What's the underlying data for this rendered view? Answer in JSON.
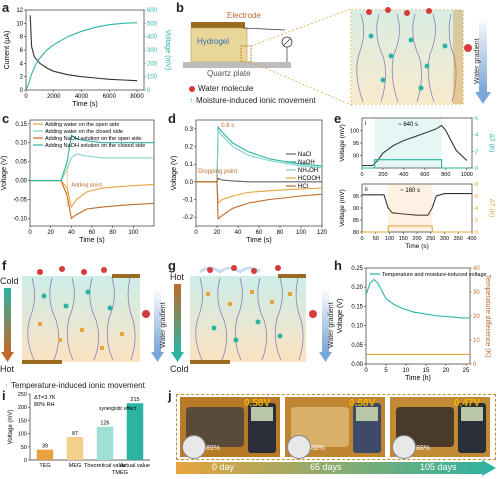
{
  "panels": {
    "a": {
      "label": "a"
    },
    "b": {
      "label": "b"
    },
    "c": {
      "label": "c"
    },
    "d": {
      "label": "d"
    },
    "e": {
      "label": "e"
    },
    "f": {
      "label": "f"
    },
    "g": {
      "label": "g"
    },
    "h": {
      "label": "h"
    },
    "i": {
      "label": "i"
    },
    "j": {
      "label": "j"
    }
  },
  "schematic_b": {
    "electrode": "Electrode",
    "hydrogel": "Hydrogel",
    "quartz": "Quartz plate",
    "legend_water": "Water molecule",
    "legend_ion": "Moisture-induced ionic movement",
    "water_gradient": "Water gradient"
  },
  "schematic_fg": {
    "cold": "Cold",
    "hot": "Hot",
    "water_gradient": "Water gradient",
    "legend_temp_ion": "Temperature-induced ionic movement"
  },
  "photos_j": {
    "voltages": [
      "0.58V",
      "0.58V",
      "0.47V"
    ],
    "temps": [
      "89%",
      "88%",
      "88%"
    ],
    "timeline": [
      "0 day",
      "65 days",
      "105 days"
    ],
    "colors": {
      "bg": "#c88a2e",
      "accent": "#2bb3a3",
      "label": "#f5b400"
    }
  },
  "chart_data": [
    {
      "id": "a",
      "type": "line",
      "xlabel": "Time (s)",
      "ylabel": "Current (μA)",
      "y2label": "Voltage (mV)",
      "xlim": [
        0,
        8500
      ],
      "ylim": [
        0,
        12
      ],
      "y2lim": [
        0,
        600
      ],
      "xticks": [
        0,
        2000,
        4000,
        6000,
        8000
      ],
      "yticks": [
        0,
        2,
        4,
        6,
        8,
        10,
        12
      ],
      "y2ticks": [
        0,
        100,
        200,
        300,
        400,
        500,
        600
      ],
      "series": [
        {
          "axis": "left",
          "color": "#333333",
          "x": [
            300,
            400,
            600,
            1000,
            1500,
            2000,
            3000,
            4000,
            5000,
            6000,
            7000,
            8000
          ],
          "y": [
            11.2,
            6.5,
            5.0,
            4.0,
            3.3,
            2.8,
            2.3,
            2.0,
            1.8,
            1.6,
            1.5,
            1.4
          ]
        },
        {
          "axis": "right",
          "color": "#2bb3a3",
          "x": [
            0,
            200,
            400,
            700,
            1000,
            1500,
            2000,
            3000,
            4000,
            5000,
            6000,
            7000,
            8000
          ],
          "y": [
            0,
            50,
            120,
            190,
            240,
            300,
            340,
            400,
            440,
            470,
            490,
            500,
            505
          ]
        }
      ]
    },
    {
      "id": "c",
      "type": "line",
      "xlabel": "Time (s)",
      "ylabel": "Voltage (V)",
      "xlim": [
        0,
        120
      ],
      "ylim": [
        -0.12,
        0.16
      ],
      "xticks": [
        0,
        20,
        40,
        60,
        80,
        100
      ],
      "yticks": [
        -0.1,
        -0.05,
        0.0,
        0.05,
        0.1,
        0.15
      ],
      "ytick_labels": [
        "-0.10",
        "-0.05",
        "0.00",
        "0.05",
        "0.10",
        "0.15"
      ],
      "legend": [
        "Adding water on the open side",
        "Adding water on the closed side",
        "Adding NaOH solution on the open side",
        "Adding NaOH solution on the closed side"
      ],
      "annotation": "Adding point",
      "series": [
        {
          "name": "Adding water on the open side",
          "color": "#e8a33d",
          "x": [
            0,
            30,
            36,
            40,
            45,
            55,
            70,
            90,
            120
          ],
          "y": [
            0,
            0,
            -0.02,
            -0.07,
            -0.05,
            -0.03,
            -0.02,
            -0.015,
            -0.01
          ]
        },
        {
          "name": "Adding water on the closed side",
          "color": "#7fd3c8",
          "x": [
            0,
            30,
            36,
            40,
            45,
            55,
            70,
            90,
            120
          ],
          "y": [
            0,
            0,
            0.03,
            0.06,
            0.07,
            0.065,
            0.06,
            0.06,
            0.06
          ]
        },
        {
          "name": "Adding NaOH solution on the open side",
          "color": "#c06a2a",
          "x": [
            0,
            30,
            36,
            40,
            45,
            55,
            70,
            90,
            120
          ],
          "y": [
            0,
            0,
            -0.04,
            -0.1,
            -0.09,
            -0.075,
            -0.07,
            -0.065,
            -0.06
          ]
        },
        {
          "name": "Adding NaOH solution on the closed side",
          "color": "#2bb3a3",
          "x": [
            0,
            30,
            36,
            40,
            45,
            55,
            70,
            90,
            120
          ],
          "y": [
            0,
            0,
            0.05,
            0.12,
            0.11,
            0.105,
            0.1,
            0.1,
            0.1
          ]
        }
      ]
    },
    {
      "id": "d",
      "type": "line",
      "xlabel": "Time (s)",
      "ylabel": "Voltage (V)",
      "xlim": [
        0,
        120
      ],
      "ylim": [
        -0.25,
        0.35
      ],
      "xticks": [
        0,
        20,
        40,
        60,
        80,
        100,
        120
      ],
      "yticks": [
        -0.2,
        -0.1,
        0.0,
        0.1,
        0.2,
        0.3
      ],
      "ytick_labels": [
        "-0.2",
        "-0.1",
        "0.0",
        "0.1",
        "0.2",
        "0.3"
      ],
      "legend": [
        "NaCl",
        "NaOH",
        "NH₄OH",
        "HCOOH",
        "HCl"
      ],
      "annotations": [
        "0.8 s",
        "Dropping point"
      ],
      "series": [
        {
          "name": "NaCl",
          "color": "#666666",
          "x": [
            0,
            20,
            21,
            25,
            35,
            50,
            70,
            100,
            120
          ],
          "y": [
            0,
            0,
            0.02,
            0.01,
            0.005,
            0.0,
            0.0,
            0.0,
            0.0
          ]
        },
        {
          "name": "NaOH",
          "color": "#2bb3a3",
          "x": [
            0,
            20,
            21,
            25,
            35,
            50,
            70,
            100,
            120
          ],
          "y": [
            0,
            0,
            0.31,
            0.28,
            0.22,
            0.17,
            0.13,
            0.1,
            0.09
          ]
        },
        {
          "name": "NH₄OH",
          "color": "#7fd3c8",
          "x": [
            0,
            20,
            21,
            25,
            35,
            50,
            70,
            100,
            120
          ],
          "y": [
            0,
            0,
            0.29,
            0.26,
            0.2,
            0.15,
            0.12,
            0.09,
            0.08
          ]
        },
        {
          "name": "HCOOH",
          "color": "#e8a33d",
          "x": [
            0,
            20,
            21,
            25,
            35,
            50,
            70,
            100,
            120
          ],
          "y": [
            0,
            0,
            -0.12,
            -0.1,
            -0.08,
            -0.06,
            -0.05,
            -0.04,
            -0.035
          ]
        },
        {
          "name": "HCl",
          "color": "#c06a2a",
          "x": [
            0,
            20,
            21,
            25,
            35,
            50,
            70,
            100,
            120
          ],
          "y": [
            0,
            0,
            -0.21,
            -0.19,
            -0.15,
            -0.12,
            -0.1,
            -0.08,
            -0.07
          ]
        }
      ]
    },
    {
      "id": "e_i",
      "type": "line",
      "tag": "i",
      "xlim": [
        0,
        1050
      ],
      "ylim": [
        85,
        105
      ],
      "y2lim": [
        0,
        6
      ],
      "xticks": [
        0,
        200,
        400,
        600,
        800,
        1000
      ],
      "yticks": [
        90,
        95,
        100
      ],
      "y2ticks": [
        0,
        2,
        4,
        6
      ],
      "ylabel": "Voltage (mV)",
      "y2label": "ΔT (K)",
      "annotation": "~ 640 s",
      "series": [
        {
          "axis": "left",
          "color": "#333333",
          "x": [
            0,
            100,
            150,
            200,
            300,
            400,
            500,
            600,
            700,
            760,
            800,
            850,
            900,
            1000
          ],
          "y": [
            86,
            86,
            88,
            91,
            94,
            96,
            97.5,
            99,
            100.5,
            102,
            100,
            96,
            92,
            88
          ]
        },
        {
          "axis": "right",
          "color": "#2bb3a3",
          "x": [
            0,
            120,
            121,
            760,
            761,
            1000
          ],
          "y": [
            0,
            0,
            1,
            1,
            0,
            0
          ]
        }
      ]
    },
    {
      "id": "e_ii",
      "type": "line",
      "tag": "ii",
      "xlabel": "Time (s)",
      "xlim": [
        0,
        400
      ],
      "ylim": [
        80,
        100
      ],
      "y2lim": [
        0,
        8
      ],
      "xticks": [
        0,
        50,
        100,
        150,
        200,
        250,
        300,
        350,
        400
      ],
      "yticks": [
        80,
        85,
        90,
        95
      ],
      "y2ticks": [
        0,
        2,
        4,
        6,
        8
      ],
      "ylabel": "Voltage (mV)",
      "y2label": "ΔT (K)",
      "annotation": "~ 160 s",
      "series": [
        {
          "axis": "left",
          "color": "#333333",
          "x": [
            0,
            80,
            95,
            110,
            150,
            200,
            240,
            255,
            270,
            300,
            400
          ],
          "y": [
            95.5,
            95.5,
            90,
            88,
            87.5,
            87,
            87,
            90,
            95,
            96,
            96
          ]
        },
        {
          "axis": "right",
          "color": "#e8a33d",
          "x": [
            0,
            95,
            96,
            255,
            256,
            400
          ],
          "y": [
            0,
            0,
            1,
            1,
            0,
            0
          ]
        }
      ]
    },
    {
      "id": "h",
      "type": "line",
      "xlabel": "Time (h)",
      "ylabel": "Voltage (V)",
      "y2label": "Temperature difference (K)",
      "xlim": [
        0,
        26
      ],
      "ylim": [
        0,
        0.25
      ],
      "y2lim": [
        0,
        40
      ],
      "xticks": [
        0,
        5,
        10,
        15,
        20,
        25
      ],
      "yticks": [
        0.0,
        0.05,
        0.1,
        0.15,
        0.2,
        0.25
      ],
      "ytick_labels": [
        "0.00",
        "0.05",
        "0.10",
        "0.15",
        "0.20",
        "0.25"
      ],
      "y2ticks": [
        0,
        10,
        20,
        30,
        40
      ],
      "legend": [
        "Temperature and moisture-induced voltage"
      ],
      "series": [
        {
          "name": "Temperature and moisture-induced voltage",
          "axis": "left",
          "color": "#2bb3a3",
          "x": [
            0,
            1,
            2,
            3,
            4,
            5,
            7,
            9,
            12,
            15,
            18,
            21,
            24,
            26
          ],
          "y": [
            0.18,
            0.21,
            0.22,
            0.21,
            0.19,
            0.17,
            0.155,
            0.145,
            0.135,
            0.13,
            0.125,
            0.123,
            0.12,
            0.12
          ]
        },
        {
          "axis": "right",
          "color": "#e8a33d",
          "x": [
            0,
            26
          ],
          "y": [
            4,
            4
          ]
        }
      ]
    },
    {
      "id": "i",
      "type": "bar",
      "ylabel": "Voltage (mV)",
      "ylim": [
        0,
        250
      ],
      "yticks": [
        0,
        50,
        100,
        150,
        200,
        250
      ],
      "categories": [
        "TEG",
        "MEG",
        "Theoretical value",
        "Actual value"
      ],
      "category_sub": "TMEG",
      "values": [
        39,
        87,
        126,
        215
      ],
      "value_labels": [
        "39",
        "87",
        "126",
        "215"
      ],
      "colors": [
        "#e8a33d",
        "#f3cf8a",
        "#9fe0d6",
        "#2bb3a3"
      ],
      "condition_1": "ΔT=3.7K",
      "condition_2": "80% RH",
      "annotation": "synergistic effect"
    }
  ]
}
